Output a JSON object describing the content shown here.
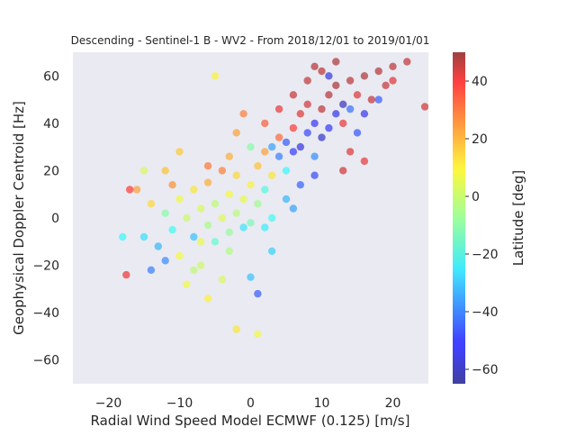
{
  "chart_data": {
    "type": "scatter",
    "title": "Descending - Sentinel-1 B - WV2 - From 2018/12/01 to 2019/01/01",
    "xlabel": "Radial Wind Speed Model ECMWF (0.125) [m/s]",
    "ylabel": "Geophysical Doppler Centroid [Hz]",
    "xlim": [
      -25,
      25
    ],
    "ylim": [
      -70,
      70
    ],
    "xticks": [
      -20,
      -10,
      0,
      10,
      20
    ],
    "yticks": [
      -60,
      -40,
      -20,
      0,
      20,
      40,
      60
    ],
    "grid": false,
    "background": "#eaeaf2",
    "colorscale": "jet",
    "marker_alpha": 0.55,
    "colorbar": {
      "label": "Latitude [deg]",
      "range": [
        -65,
        50
      ],
      "ticks": [
        -60,
        -40,
        -20,
        0,
        20,
        40
      ]
    },
    "series": [
      {
        "colored_by": "Latitude [deg]",
        "points": [
          [
            -12,
            2,
            -10
          ],
          [
            -11,
            -5,
            -20
          ],
          [
            -10,
            8,
            5
          ],
          [
            -9,
            0,
            0
          ],
          [
            -8,
            12,
            10
          ],
          [
            -8,
            -8,
            -30
          ],
          [
            -7,
            4,
            2
          ],
          [
            -6,
            -3,
            -5
          ],
          [
            -6,
            15,
            18
          ],
          [
            -5,
            6,
            -2
          ],
          [
            -5,
            -10,
            -15
          ],
          [
            -4,
            0,
            3
          ],
          [
            -4,
            20,
            25
          ],
          [
            -3,
            -6,
            -8
          ],
          [
            -3,
            10,
            6
          ],
          [
            -2,
            2,
            -3
          ],
          [
            -2,
            18,
            12
          ],
          [
            -1,
            -4,
            -25
          ],
          [
            -1,
            8,
            4
          ],
          [
            0,
            14,
            8
          ],
          [
            0,
            -2,
            -12
          ],
          [
            1,
            22,
            15
          ],
          [
            1,
            6,
            -6
          ],
          [
            2,
            28,
            20
          ],
          [
            2,
            12,
            -18
          ],
          [
            3,
            30,
            -35
          ],
          [
            3,
            18,
            10
          ],
          [
            4,
            26,
            -40
          ],
          [
            4,
            34,
            28
          ],
          [
            5,
            32,
            -45
          ],
          [
            5,
            20,
            -22
          ],
          [
            6,
            38,
            35
          ],
          [
            6,
            28,
            -50
          ],
          [
            7,
            44,
            40
          ],
          [
            7,
            30,
            -55
          ],
          [
            8,
            36,
            -48
          ],
          [
            8,
            48,
            42
          ],
          [
            9,
            40,
            -52
          ],
          [
            9,
            26,
            -38
          ],
          [
            10,
            46,
            44
          ],
          [
            10,
            34,
            -58
          ],
          [
            11,
            52,
            46
          ],
          [
            11,
            38,
            -50
          ],
          [
            12,
            44,
            -54
          ],
          [
            12,
            56,
            48
          ],
          [
            13,
            48,
            -60
          ],
          [
            13,
            40,
            38
          ],
          [
            14,
            58,
            45
          ],
          [
            14,
            46,
            -42
          ],
          [
            15,
            52,
            40
          ],
          [
            15,
            36,
            -46
          ],
          [
            16,
            60,
            47
          ],
          [
            17,
            50,
            44
          ],
          [
            18,
            62,
            46
          ],
          [
            19,
            56,
            43
          ],
          [
            20,
            64,
            45
          ],
          [
            22,
            66,
            44
          ],
          [
            24.5,
            47,
            42
          ],
          [
            -15,
            -8,
            -26
          ],
          [
            -14,
            6,
            12
          ],
          [
            -13,
            -12,
            -32
          ],
          [
            -16,
            12,
            20
          ],
          [
            -17.5,
            -24,
            38
          ],
          [
            -18,
            -8,
            -22
          ],
          [
            -17,
            12,
            35
          ],
          [
            -14,
            -22,
            -40
          ],
          [
            -12,
            20,
            15
          ],
          [
            -9,
            -28,
            5
          ],
          [
            -7,
            -20,
            0
          ],
          [
            -6,
            -34,
            8
          ],
          [
            -4,
            -26,
            2
          ],
          [
            -3,
            26,
            18
          ],
          [
            1,
            -32,
            -45
          ],
          [
            1,
            -49,
            5
          ],
          [
            -2,
            -47,
            10
          ],
          [
            0,
            -25,
            -30
          ],
          [
            -5,
            60,
            8
          ],
          [
            -2,
            36,
            20
          ],
          [
            3,
            -14,
            -28
          ],
          [
            6,
            4,
            -35
          ],
          [
            5,
            8,
            -32
          ],
          [
            -10,
            -16,
            6
          ],
          [
            -8,
            -22,
            -2
          ],
          [
            -12,
            -18,
            -38
          ],
          [
            -15,
            20,
            2
          ],
          [
            2,
            40,
            30
          ],
          [
            4,
            46,
            38
          ],
          [
            8,
            58,
            44
          ],
          [
            10,
            62,
            45
          ],
          [
            12,
            66,
            47
          ],
          [
            14,
            28,
            40
          ],
          [
            16,
            44,
            -52
          ],
          [
            18,
            50,
            -45
          ],
          [
            20,
            58,
            40
          ],
          [
            13,
            20,
            42
          ],
          [
            16,
            24,
            38
          ],
          [
            11,
            60,
            -55
          ],
          [
            9,
            64,
            46
          ],
          [
            -1,
            44,
            25
          ],
          [
            0,
            30,
            -10
          ],
          [
            -6,
            22,
            26
          ],
          [
            -10,
            28,
            14
          ],
          [
            -11,
            14,
            22
          ],
          [
            3,
            0,
            -20
          ],
          [
            7,
            14,
            -44
          ],
          [
            9,
            18,
            -48
          ],
          [
            6,
            52,
            43
          ],
          [
            -3,
            -14,
            -4
          ],
          [
            2,
            -4,
            -24
          ],
          [
            -7,
            -10,
            4
          ]
        ]
      }
    ]
  }
}
